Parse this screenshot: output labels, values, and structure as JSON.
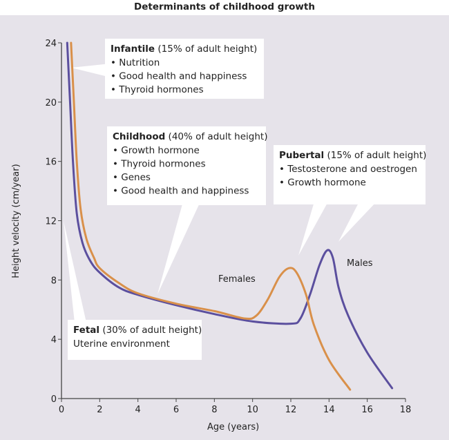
{
  "chart_data": {
    "type": "line",
    "title": "Determinants of childhood growth",
    "xlabel": "Age (years)",
    "ylabel": "Height velocity (cm/year)",
    "xlim": [
      0,
      18
    ],
    "ylim": [
      0,
      24
    ],
    "xticks": [
      0,
      2,
      4,
      6,
      8,
      10,
      12,
      14,
      16,
      18
    ],
    "yticks": [
      0,
      4,
      8,
      12,
      16,
      20,
      24
    ],
    "grid": false,
    "background": "#e6e3ea",
    "series": [
      {
        "name": "Males",
        "color": "#5b4f9e",
        "x": [
          0.3,
          0.45,
          0.6,
          0.8,
          1.1,
          1.5,
          2,
          3,
          4,
          6,
          8,
          10,
          12,
          12.5,
          13,
          13.5,
          13.9,
          14.2,
          14.5,
          15,
          16,
          17.3
        ],
        "y": [
          24,
          20,
          16,
          12.5,
          10.5,
          9.3,
          8.5,
          7.5,
          7,
          6.3,
          5.7,
          5.2,
          5.05,
          5.4,
          7,
          9,
          10,
          9.5,
          7.5,
          5.6,
          3.1,
          0.7
        ]
      },
      {
        "name": "Females",
        "color": "#d9904a",
        "x": [
          0.5,
          0.65,
          0.8,
          1,
          1.3,
          1.7,
          2,
          3,
          4,
          6,
          8,
          9.6,
          10.2,
          10.8,
          11.4,
          11.9,
          12.3,
          12.8,
          13.2,
          14,
          15.1
        ],
        "y": [
          24,
          20,
          16,
          12.8,
          10.8,
          9.5,
          8.8,
          7.8,
          7.1,
          6.4,
          5.9,
          5.4,
          5.6,
          6.7,
          8.2,
          8.8,
          8.5,
          7,
          5,
          2.6,
          0.6
        ]
      }
    ],
    "annotations": {
      "infantile": {
        "head": "Infantile",
        "tail": " (15% of adult height)",
        "items": [
          "• Nutrition",
          "• Good health and happiness",
          "• Thyroid hormones"
        ]
      },
      "childhood": {
        "head": "Childhood",
        "tail": " (40% of adult height)",
        "items": [
          "• Growth hormone",
          "• Thyroid hormones",
          "• Genes",
          "• Good health and  happiness"
        ]
      },
      "pubertal": {
        "head": "Pubertal",
        "tail": " (15% of adult height)",
        "items": [
          "• Testosterone and oestrogen",
          "• Growth hormone"
        ]
      },
      "fetal": {
        "head": "Fetal",
        "tail": " (30% of adult height)",
        "items": [
          "Uterine environment"
        ]
      },
      "females_label": "Females",
      "males_label": "Males"
    }
  }
}
